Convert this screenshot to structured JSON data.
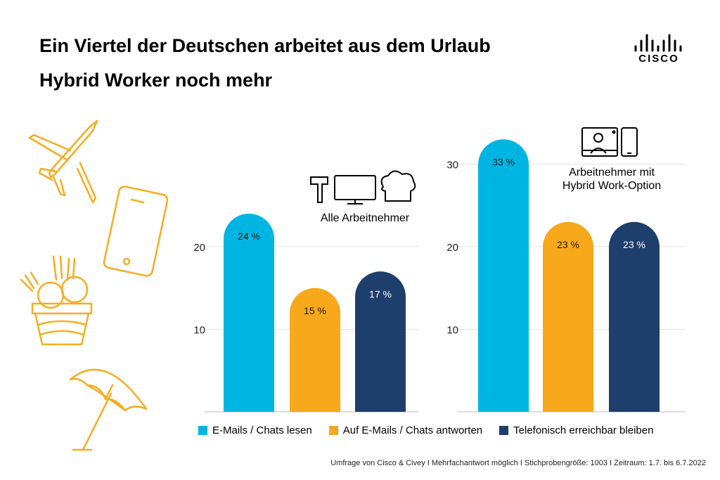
{
  "header": {
    "title_line1": "Ein Viertel der Deutschen arbeitet aus dem Urlaub",
    "title_line2": "Hybrid Worker noch mehr"
  },
  "logo": {
    "text": "CISCO",
    "icon": "cisco-logo-icon"
  },
  "colors": {
    "cyan": "#00b5e2",
    "orange": "#f7a81b",
    "navy": "#1e3f6b",
    "icon_gold": "#f5ad1f",
    "grid": "#e3e3e3"
  },
  "chart_data": [
    {
      "type": "bar",
      "title": "Alle Arbeitnehmer",
      "icon": "worker-tools-icon",
      "categories": [
        "E-Mails / Chats lesen",
        "Auf E-Mails / Chats antworten",
        "Telefonisch erreichbar bleiben"
      ],
      "values": [
        24,
        15,
        17
      ],
      "value_labels": [
        "24 %",
        "15 %",
        "17 %"
      ],
      "yticks": [
        10,
        20
      ],
      "ylim": [
        0,
        27
      ],
      "grid": true
    },
    {
      "type": "bar",
      "title_lines": [
        "Arbeitnehmer mit",
        "Hybrid Work-Option"
      ],
      "icon": "video-call-devices-icon",
      "categories": [
        "E-Mails / Chats lesen",
        "Auf E-Mails / Chats antworten",
        "Telefonisch erreichbar bleiben"
      ],
      "values": [
        33,
        23,
        23
      ],
      "value_labels": [
        "33 %",
        "23 %",
        "23 %"
      ],
      "yticks": [
        10,
        20,
        30
      ],
      "ylim": [
        0,
        37
      ],
      "grid": true
    }
  ],
  "legend": [
    {
      "label": "E-Mails / Chats lesen",
      "color": "#00b5e2"
    },
    {
      "label": "Auf E-Mails / Chats antworten",
      "color": "#f7a81b"
    },
    {
      "label": "Telefonisch erreichbar bleiben",
      "color": "#1e3f6b"
    }
  ],
  "decorations": [
    "airplane-icon",
    "smartphone-icon",
    "ice-cream-icon",
    "beach-umbrella-icon"
  ],
  "footer": "Umfrage von Cisco & Civey I Mehrfachantwort möglich I Stichprobengröße: 1003 I Zeitraum: 1.7. bis 6.7.2022"
}
